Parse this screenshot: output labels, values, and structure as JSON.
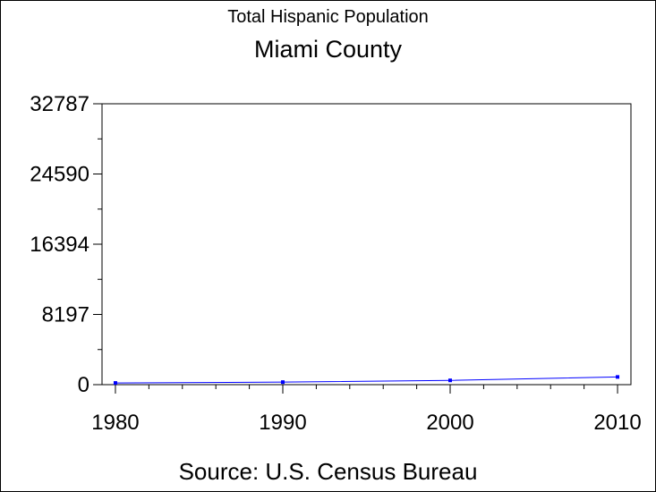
{
  "chart_data": {
    "type": "line",
    "title": "Total Hispanic Population",
    "subtitle": "Miami County",
    "source": "Source: U.S. Census Bureau",
    "x": [
      1980,
      1990,
      2000,
      2010
    ],
    "series": [
      {
        "values": [
          200,
          300,
          500,
          900
        ]
      }
    ],
    "xlim": [
      1979.2,
      2010.8
    ],
    "ylim": [
      0,
      32787
    ],
    "x_ticks": [
      "1980",
      "1990",
      "2000",
      "2010"
    ],
    "y_ticks": [
      "0",
      "8197",
      "16394",
      "24590",
      "32787"
    ],
    "y_tick_values": [
      0,
      8197,
      16394,
      24590,
      32787
    ],
    "line_color": "#0000ff",
    "grid": false
  }
}
